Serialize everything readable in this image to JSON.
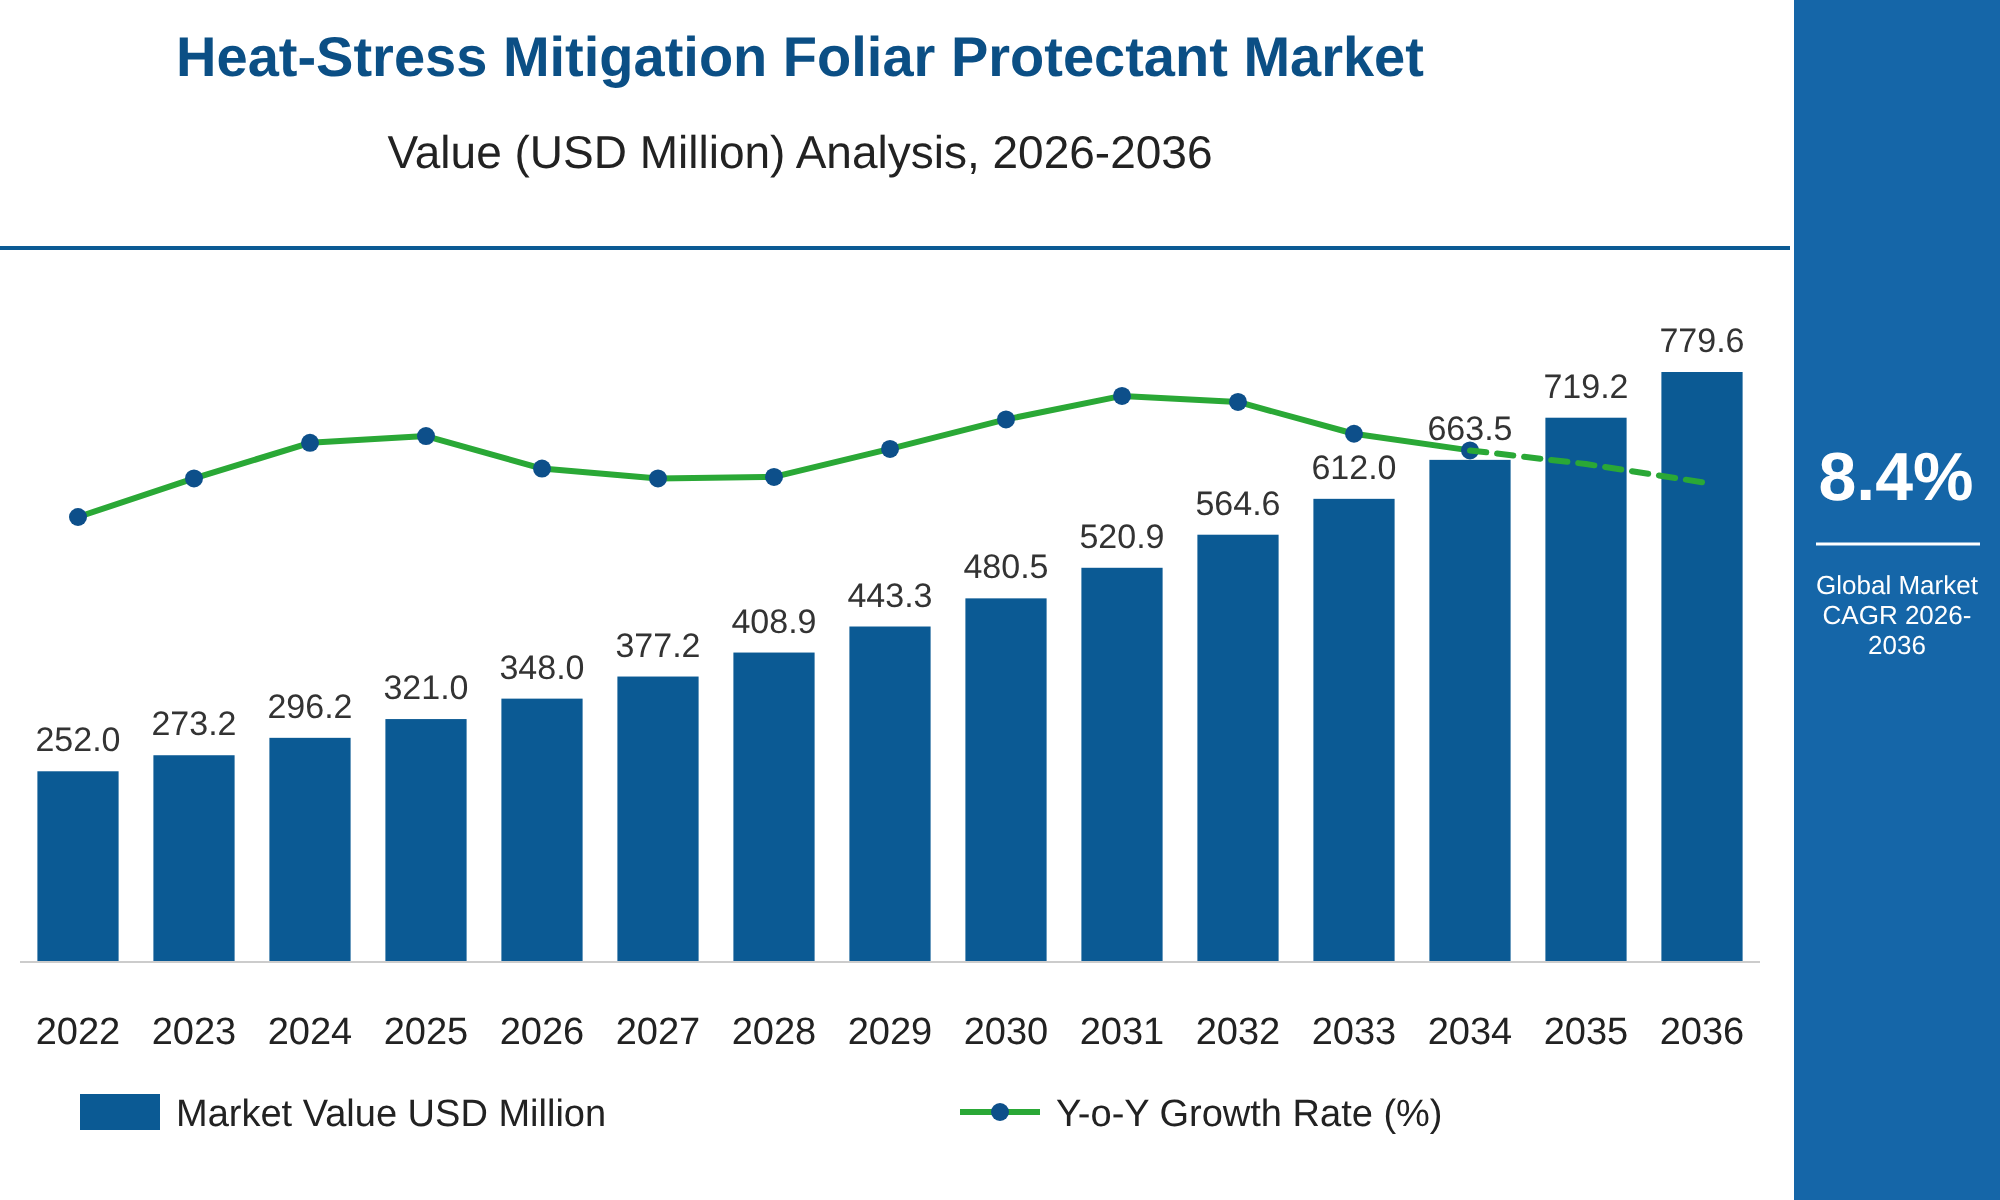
{
  "chart_data": {
    "type": "bar",
    "title": "Heat-Stress Mitigation Foliar Protectant Market",
    "subtitle": "Value (USD Million) Analysis, 2026-2036",
    "categories": [
      "2022",
      "2023",
      "2024",
      "2025",
      "2026",
      "2027",
      "2028",
      "2029",
      "2030",
      "2031",
      "2032",
      "2033",
      "2034",
      "2035",
      "2036"
    ],
    "series": [
      {
        "name": "Market Value USD Million",
        "color": "#0b5a94",
        "values": [
          252.0,
          273.2,
          296.2,
          321.0,
          348.0,
          377.2,
          408.9,
          443.3,
          480.5,
          520.9,
          564.6,
          612.0,
          663.5,
          719.2,
          779.6
        ],
        "value_labels": [
          "252.0",
          "273.2",
          "296.2",
          "321.0",
          "348.0",
          "377.2",
          "408.9",
          "443.3",
          "480.5",
          "520.9",
          "564.6",
          "612.0",
          "663.5",
          "719.2",
          "779.6"
        ]
      },
      {
        "name": "Y-o-Y Growth Rate (%)",
        "type": "line",
        "color": "#2aa836",
        "marker": "circle",
        "line_style": "solid",
        "values": [
          588,
          639,
          686,
          695,
          652,
          639,
          641,
          678,
          717,
          748,
          740,
          698,
          676,
          null,
          null
        ]
      },
      {
        "type": "line",
        "color": "#2aa836",
        "marker": "none",
        "line_style": "dashed",
        "values": [
          null,
          null,
          null,
          null,
          null,
          null,
          null,
          null,
          null,
          null,
          null,
          null,
          676,
          658,
          634
        ]
      }
    ],
    "legend": "bottom",
    "annotations": [
      "8.4%",
      "Global Market CAGR 2026-2036"
    ]
  }
}
